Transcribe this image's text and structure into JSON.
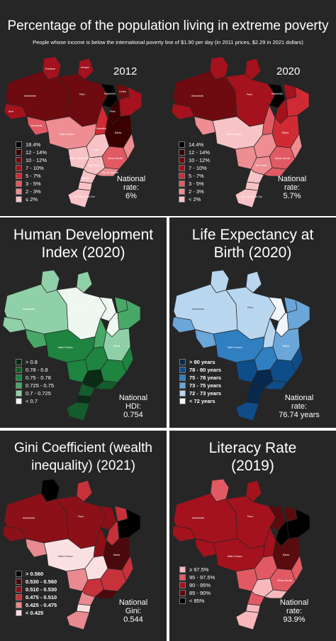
{
  "top": {
    "title": "Percentage of the population living in extreme poverty",
    "subtitle": "People whose income is below the international poverty line of $1.90 per day (in 2011 prices, $2.29 in 2021 dollars)",
    "left_year": "2012",
    "right_year": "2020",
    "left_legend": [
      "18.4%",
      "12 - 14%",
      "10 - 12%",
      "7 - 10%",
      "5 - 7%",
      "3 - 5%",
      "2 - 3%",
      "≤ 2%"
    ],
    "right_legend": [
      "14.4%",
      "12 - 14%",
      "10 - 12%",
      "7 - 10%",
      "5 - 7%",
      "3 - 5%",
      "2 - 3%",
      "< 2%"
    ],
    "left_national": [
      "National",
      "rate:",
      "6%"
    ],
    "right_national": [
      "National",
      "rate:",
      "5.7%"
    ],
    "legend_colors": [
      "#000000",
      "#3a0000",
      "#6e0b10",
      "#a3121d",
      "#d02b35",
      "#e15a63",
      "#ee8d92",
      "#f8c3c6"
    ]
  },
  "hdi": {
    "title_line1": "Human Development",
    "title_line2": "Index (2020)",
    "legend": [
      "> 0.8",
      "0.78 - 0.8",
      "0.75 - 0.78",
      "0.725 - 0.75",
      "0.7 - 0.725",
      "< 0.7"
    ],
    "legend_colors": [
      "#0a2b14",
      "#145c2c",
      "#1e8440",
      "#48a868",
      "#8fd0a8",
      "#eef8f0"
    ],
    "national": [
      "National",
      "HDI:",
      "0.754"
    ]
  },
  "life": {
    "title_line1": "Life Expectancy at",
    "title_line2": "Birth (2020)",
    "legend": [
      "> 80 years",
      "78 - 80 years",
      "75 - 78 years",
      "73 - 75 years",
      "72 - 73 years",
      "< 72 years"
    ],
    "legend_colors": [
      "#08284e",
      "#0e4d8a",
      "#2f7fc1",
      "#6aa6d8",
      "#b9d6ef",
      "#f0f6fc"
    ],
    "national": [
      "National",
      "rate:",
      "76.74 years"
    ]
  },
  "gini": {
    "title_line1": "Gini Coefficient (wealth",
    "title_line2": "inequality) (2021)",
    "legend": [
      "> 0.560",
      "0.530 - 0.560",
      "0.510 - 0.530",
      "0.475 - 0.510",
      "0.425 - 0.475",
      "< 0.425"
    ],
    "legend_colors": [
      "#000000",
      "#4a0a0d",
      "#8c1018",
      "#c6323a",
      "#e88a90",
      "#fbe0e2"
    ],
    "national": [
      "National",
      "Gini:",
      "0.544"
    ]
  },
  "literacy": {
    "title_line1": "Literacy Rate",
    "title_line2": "(2019)",
    "legend": [
      "≥ 97.5%",
      "95 - 97.5%",
      "90 - 95%",
      "85 - 90%",
      "< 85%"
    ],
    "legend_colors": [
      "#f6b8bc",
      "#e15a63",
      "#a3121d",
      "#5a0b0e",
      "#000000"
    ],
    "national": [
      "National",
      "rate:",
      "93.9%"
    ]
  },
  "states": {
    "roraima": "Roraima",
    "amapa": "Amapá",
    "amazonas": "Amazonas",
    "para": "Pará",
    "maranhao": "Maranhão",
    "ceara": "Ceará",
    "piaui": "Piauí",
    "acre": "Acre",
    "rondonia": "Rondônia",
    "tocantins": "Tocantins",
    "bahia": "Bahia",
    "mato_grosso": "Mato Grosso",
    "goias": "Goiás",
    "minas": "Minas Gerais",
    "ms": "Mato Grosso do Sul",
    "sp": "São Paulo",
    "rj": "Rio de Janeiro",
    "es": "Espírito Santo",
    "parana": "Paraná",
    "sc": "Santa Catarina",
    "rs": "Rio Grande do Sul"
  }
}
